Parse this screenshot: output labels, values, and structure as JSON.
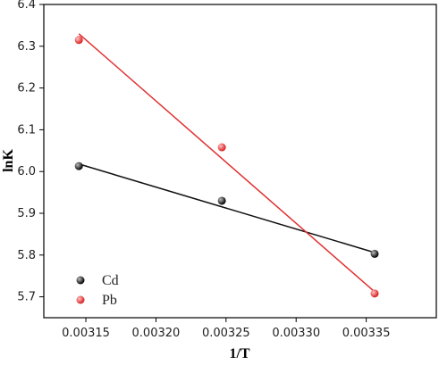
{
  "chart_data": {
    "type": "scatter",
    "xlabel": "1/T",
    "ylabel": "lnK",
    "xlim": [
      0.00312,
      0.0034
    ],
    "ylim": [
      5.65,
      6.4
    ],
    "x_ticks": [
      0.00315,
      0.0032,
      0.00325,
      0.0033,
      0.00335
    ],
    "x_tick_labels": [
      "0.00315",
      "0.00320",
      "0.00325",
      "0.00330",
      "0.00335"
    ],
    "y_ticks": [
      5.7,
      5.8,
      5.9,
      6.0,
      6.1,
      6.2,
      6.3,
      6.4
    ],
    "y_tick_labels": [
      "5.7",
      "5.8",
      "5.9",
      "6.0",
      "6.1",
      "6.2",
      "6.3",
      "6.4"
    ],
    "grid": false,
    "legend_position": "bottom-left",
    "series": [
      {
        "name": "Cd",
        "color": "#111111",
        "x": [
          0.003145,
          0.003247,
          0.003356
        ],
        "y": [
          6.013,
          5.93,
          5.803
        ],
        "fit": {
          "x": [
            0.003145,
            0.003356
          ],
          "y": [
            6.018,
            5.806
          ]
        }
      },
      {
        "name": "Pb",
        "color": "#e03030",
        "x": [
          0.003145,
          0.003247,
          0.003356
        ],
        "y": [
          6.315,
          6.058,
          5.708
        ],
        "fit": {
          "x": [
            0.003145,
            0.003356
          ],
          "y": [
            6.33,
            5.712
          ]
        }
      }
    ]
  }
}
